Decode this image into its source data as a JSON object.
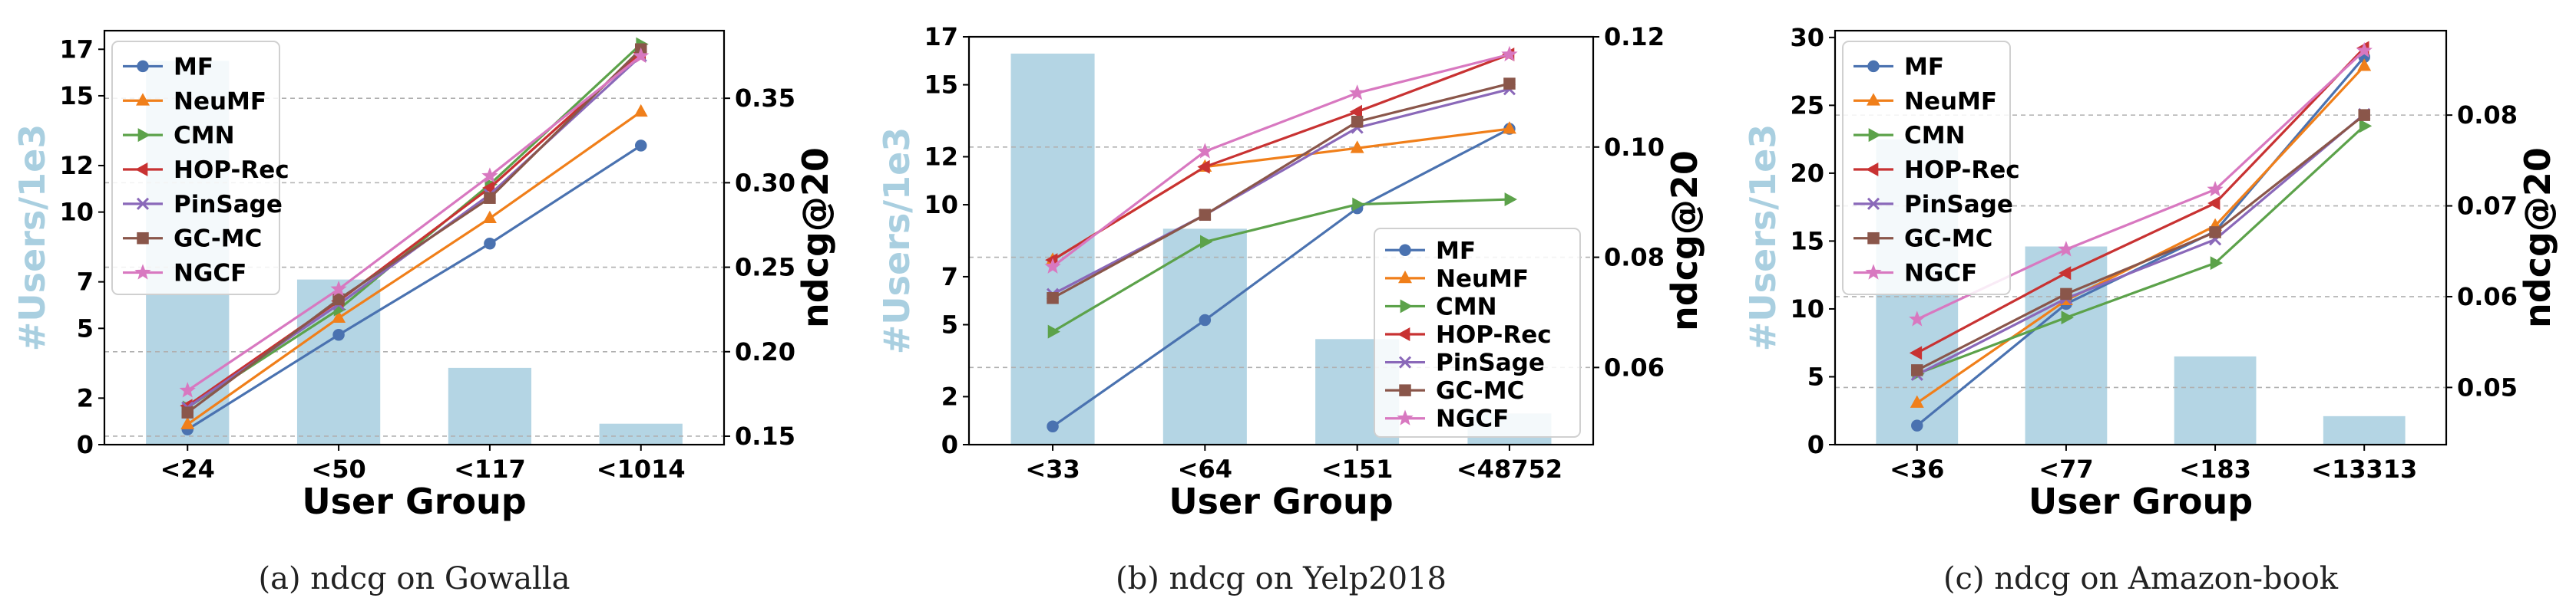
{
  "chart_data": [
    {
      "type": "bar+line",
      "caption": "(a)  ndcg on Gowalla",
      "xlabel": "User Group",
      "ylabel_left": "#Users/1e3",
      "ylabel_right": "ndcg@20",
      "categories": [
        "<24",
        "<50",
        "<117",
        "<1014"
      ],
      "bars": [
        16.5,
        7.1,
        3.3,
        0.9
      ],
      "y_left_ticks": [
        0,
        2,
        5,
        7,
        10,
        12,
        15,
        17
      ],
      "y_left_lim": [
        0,
        17.8
      ],
      "y_right_ticks": [
        "0.15",
        "0.20",
        "0.25",
        "0.30",
        "0.35"
      ],
      "y_right_lim": [
        0.145,
        0.39
      ],
      "legend_position": "upper-left",
      "series": [
        {
          "name": "MF",
          "color": "#4a72b0",
          "marker": "circle",
          "values": [
            0.154,
            0.21,
            0.264,
            0.322
          ]
        },
        {
          "name": "NeuMF",
          "color": "#f07f1a",
          "marker": "triangle-up",
          "values": [
            0.157,
            0.22,
            0.279,
            0.342
          ]
        },
        {
          "name": "CMN",
          "color": "#5ca24a",
          "marker": "triangle-right",
          "values": [
            0.167,
            0.225,
            0.299,
            0.382
          ]
        },
        {
          "name": "HOP-Rec",
          "color": "#c83232",
          "marker": "triangle-left",
          "values": [
            0.168,
            0.23,
            0.297,
            0.377
          ]
        },
        {
          "name": "PinSage",
          "color": "#8a68b9",
          "marker": "x",
          "values": [
            0.167,
            0.228,
            0.293,
            0.375
          ]
        },
        {
          "name": "GC-MC",
          "color": "#8a564a",
          "marker": "square",
          "values": [
            0.164,
            0.231,
            0.291,
            0.379
          ]
        },
        {
          "name": "NGCF",
          "color": "#d878c0",
          "marker": "star",
          "values": [
            0.177,
            0.237,
            0.304,
            0.375
          ]
        }
      ]
    },
    {
      "type": "bar+line",
      "caption": "(b)  ndcg on Yelp2018",
      "xlabel": "User Group",
      "ylabel_left": "#Users/1e3",
      "ylabel_right": "ndcg@20",
      "categories": [
        "<33",
        "<64",
        "<151",
        "<48752"
      ],
      "bars": [
        16.3,
        9.0,
        4.4,
        1.3
      ],
      "y_left_ticks": [
        0,
        2,
        5,
        7,
        10,
        12,
        15,
        17
      ],
      "y_left_lim": [
        0,
        17.0
      ],
      "y_right_ticks": [
        "0.06",
        "0.08",
        "0.10",
        "0.12"
      ],
      "y_right_lim": [
        0.046,
        0.12
      ],
      "legend_position": "lower-right",
      "series": [
        {
          "name": "MF",
          "color": "#4a72b0",
          "marker": "circle",
          "values": [
            0.0493,
            0.0686,
            0.0889,
            0.1033
          ]
        },
        {
          "name": "NeuMF",
          "color": "#f07f1a",
          "marker": "triangle-up",
          "values": [
            0.0795,
            0.0964,
            0.0998,
            0.1033
          ]
        },
        {
          "name": "CMN",
          "color": "#5ca24a",
          "marker": "triangle-right",
          "values": [
            0.0665,
            0.0828,
            0.0896,
            0.0905
          ]
        },
        {
          "name": "HOP-Rec",
          "color": "#c83232",
          "marker": "triangle-left",
          "values": [
            0.0795,
            0.0964,
            0.1064,
            0.1168
          ]
        },
        {
          "name": "PinSage",
          "color": "#8a68b9",
          "marker": "x",
          "values": [
            0.0733,
            0.0877,
            0.1035,
            0.1105
          ]
        },
        {
          "name": "GC-MC",
          "color": "#8a564a",
          "marker": "square",
          "values": [
            0.0726,
            0.0877,
            0.1046,
            0.1115
          ]
        },
        {
          "name": "NGCF",
          "color": "#d878c0",
          "marker": "star",
          "values": [
            0.0783,
            0.0992,
            0.1098,
            0.1168
          ]
        }
      ]
    },
    {
      "type": "bar+line",
      "caption": "(c)  ndcg on Amazon-book",
      "xlabel": "User Group",
      "ylabel_left": "#Users/1e3",
      "ylabel_right": "ndcg@20",
      "categories": [
        "<36",
        "<77",
        "<183",
        "<13313"
      ],
      "bars": [
        22.5,
        14.6,
        6.5,
        2.1
      ],
      "y_left_ticks": [
        0,
        5,
        10,
        15,
        20,
        25,
        30
      ],
      "y_left_lim": [
        0,
        30.5
      ],
      "y_right_ticks": [
        "0.05",
        "0.06",
        "0.07",
        "0.08"
      ],
      "y_right_lim": [
        0.0437,
        0.0893
      ],
      "legend_position": "upper-left",
      "series": [
        {
          "name": "MF",
          "color": "#4a72b0",
          "marker": "circle",
          "values": [
            0.0458,
            0.0592,
            0.0672,
            0.0864
          ]
        },
        {
          "name": "NeuMF",
          "color": "#f07f1a",
          "marker": "triangle-up",
          "values": [
            0.0483,
            0.0596,
            0.0678,
            0.0854
          ]
        },
        {
          "name": "CMN",
          "color": "#5ca24a",
          "marker": "triangle-right",
          "values": [
            0.0515,
            0.0577,
            0.0637,
            0.0788
          ]
        },
        {
          "name": "HOP-Rec",
          "color": "#c83232",
          "marker": "triangle-left",
          "values": [
            0.0538,
            0.0626,
            0.0703,
            0.0874
          ]
        },
        {
          "name": "PinSage",
          "color": "#8a68b9",
          "marker": "x",
          "values": [
            0.0514,
            0.0598,
            0.0663,
            0.0801
          ]
        },
        {
          "name": "GC-MC",
          "color": "#8a564a",
          "marker": "square",
          "values": [
            0.0519,
            0.0603,
            0.0671,
            0.08
          ]
        },
        {
          "name": "NGCF",
          "color": "#d878c0",
          "marker": "star",
          "values": [
            0.0575,
            0.0652,
            0.0718,
            0.0871
          ]
        }
      ]
    }
  ]
}
